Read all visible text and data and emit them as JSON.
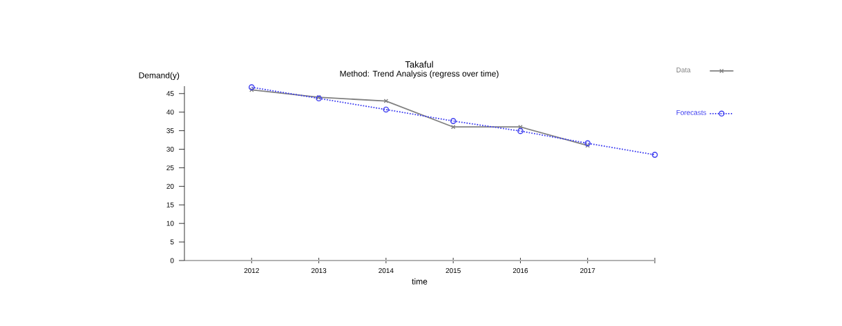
{
  "chart_data": {
    "type": "line",
    "title": "Takaful",
    "subtitle": "Method: Trend Analysis (regress over time)",
    "xlabel": "time",
    "ylabel": "Demand(y)",
    "xlim": [
      2011,
      2018
    ],
    "xticks": [
      2012,
      2013,
      2014,
      2015,
      2016,
      2017,
      {
        "value": 2018,
        "label": null
      }
    ],
    "ylim": [
      0,
      47
    ],
    "yticks": [
      0,
      5,
      10,
      15,
      20,
      25,
      30,
      35,
      40,
      45
    ],
    "grid": false,
    "legend": "top right",
    "series": [
      {
        "name": "Data",
        "color": "#808080",
        "marker": "cross",
        "line_style": "solid",
        "x": [
          2012,
          2013,
          2014,
          2015,
          2016,
          2017
        ],
        "values": [
          46,
          44,
          43,
          36,
          36,
          31
        ]
      },
      {
        "name": "Forecasts",
        "color": "#3c3cf0",
        "marker": "circle",
        "line_style": "dotted",
        "x": [
          2012,
          2013,
          2014,
          2015,
          2016,
          2017,
          2018
        ],
        "values": [
          46.7,
          43.7,
          40.7,
          37.6,
          34.9,
          31.6,
          28.5
        ]
      }
    ]
  }
}
